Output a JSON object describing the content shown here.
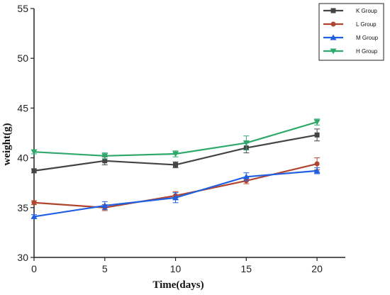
{
  "chart_data": {
    "type": "line",
    "title": "",
    "xlabel": "Time(days)",
    "ylabel": "weight(g)",
    "x": [
      0,
      5,
      10,
      15,
      20
    ],
    "xlim": [
      0,
      22
    ],
    "ylim": [
      30,
      55
    ],
    "xticks": [
      0,
      5,
      10,
      15,
      20
    ],
    "yticks": [
      30,
      35,
      40,
      45,
      50,
      55
    ],
    "grid": false,
    "legend_position": "top-right",
    "series": [
      {
        "name": "K Group",
        "color": "#444444",
        "marker": "square",
        "values": [
          38.7,
          39.7,
          39.3,
          41.0,
          42.3
        ],
        "errors": [
          0.2,
          0.4,
          0.3,
          0.5,
          0.6
        ]
      },
      {
        "name": "L Group",
        "color": "#b0452f",
        "marker": "circle",
        "values": [
          35.5,
          35.0,
          36.2,
          37.7,
          39.4
        ],
        "errors": [
          0.2,
          0.3,
          0.4,
          0.3,
          0.6
        ]
      },
      {
        "name": "M Group",
        "color": "#1f5fe0",
        "marker": "triangle-up",
        "values": [
          34.1,
          35.2,
          36.0,
          38.1,
          38.7
        ],
        "errors": [
          0.2,
          0.4,
          0.5,
          0.4,
          0.3
        ]
      },
      {
        "name": "H Group",
        "color": "#2fa86b",
        "marker": "triangle-down",
        "values": [
          40.6,
          40.2,
          40.4,
          41.5,
          43.6
        ],
        "errors": [
          0.2,
          0.3,
          0.3,
          0.7,
          0.3
        ]
      }
    ]
  }
}
